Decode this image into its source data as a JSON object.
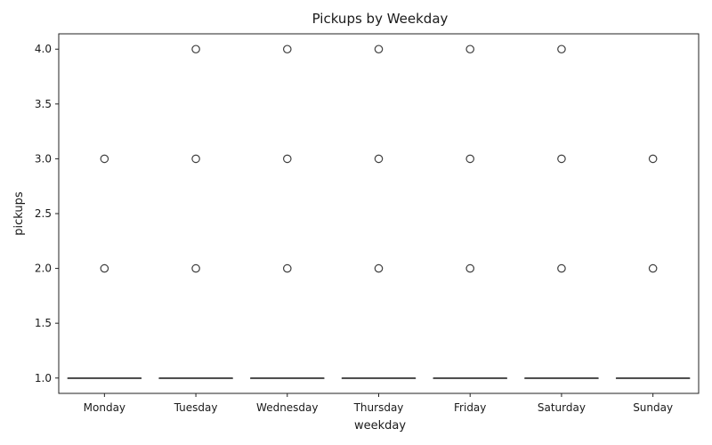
{
  "chart_data": {
    "type": "box",
    "title": "Pickups by Weekday",
    "xlabel": "weekday",
    "ylabel": "pickups",
    "categories": [
      "Monday",
      "Tuesday",
      "Wednesday",
      "Thursday",
      "Friday",
      "Saturday",
      "Sunday"
    ],
    "ylim": [
      0.86,
      4.14
    ],
    "yticks": [
      1.0,
      1.5,
      2.0,
      2.5,
      3.0,
      3.5,
      4.0
    ],
    "ytick_labels": [
      "1.0",
      "1.5",
      "2.0",
      "2.5",
      "3.0",
      "3.5",
      "4.0"
    ],
    "grid": false,
    "box_color": "#3c64a0",
    "series": [
      {
        "category": "Monday",
        "q1": 1,
        "median": 1,
        "q3": 1,
        "whisker_low": 1,
        "whisker_high": 1,
        "outliers": [
          2,
          3
        ]
      },
      {
        "category": "Tuesday",
        "q1": 1,
        "median": 1,
        "q3": 1,
        "whisker_low": 1,
        "whisker_high": 1,
        "outliers": [
          2,
          3,
          4
        ]
      },
      {
        "category": "Wednesday",
        "q1": 1,
        "median": 1,
        "q3": 1,
        "whisker_low": 1,
        "whisker_high": 1,
        "outliers": [
          2,
          3,
          4
        ]
      },
      {
        "category": "Thursday",
        "q1": 1,
        "median": 1,
        "q3": 1,
        "whisker_low": 1,
        "whisker_high": 1,
        "outliers": [
          2,
          3,
          4
        ]
      },
      {
        "category": "Friday",
        "q1": 1,
        "median": 1,
        "q3": 1,
        "whisker_low": 1,
        "whisker_high": 1,
        "outliers": [
          2,
          3,
          4
        ]
      },
      {
        "category": "Saturday",
        "q1": 1,
        "median": 1,
        "q3": 1,
        "whisker_low": 1,
        "whisker_high": 1,
        "outliers": [
          2,
          3,
          4
        ]
      },
      {
        "category": "Sunday",
        "q1": 1,
        "median": 1,
        "q3": 1,
        "whisker_low": 1,
        "whisker_high": 1,
        "outliers": [
          2,
          3
        ]
      }
    ]
  }
}
